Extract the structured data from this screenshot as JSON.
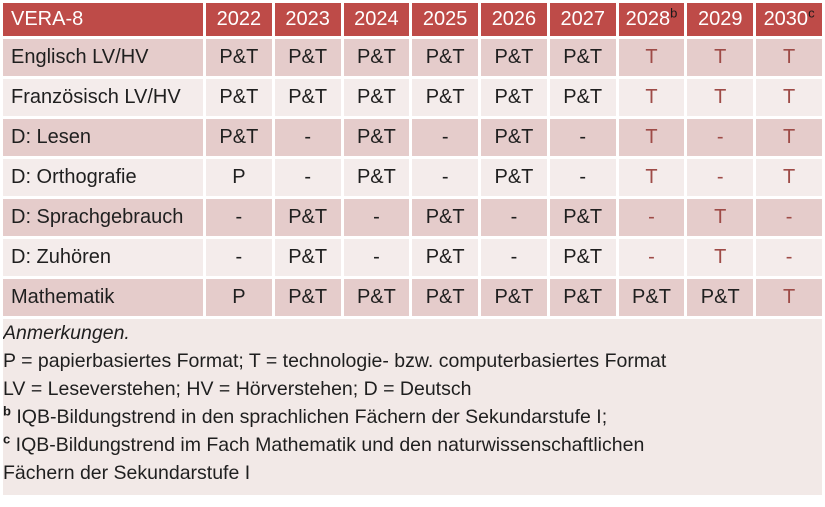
{
  "table": {
    "corner_label": "VERA-8",
    "year_headers": [
      {
        "text": "2022",
        "sup": ""
      },
      {
        "text": "2023",
        "sup": ""
      },
      {
        "text": "2024",
        "sup": ""
      },
      {
        "text": "2025",
        "sup": ""
      },
      {
        "text": "2026",
        "sup": ""
      },
      {
        "text": "2027",
        "sup": ""
      },
      {
        "text": "2028",
        "sup": "b"
      },
      {
        "text": "2029",
        "sup": ""
      },
      {
        "text": "2030",
        "sup": "c"
      }
    ],
    "rows": [
      {
        "label": "Englisch LV/HV",
        "values": [
          "P&T",
          "P&T",
          "P&T",
          "P&T",
          "P&T",
          "P&T",
          "T",
          "T",
          "T"
        ],
        "red": [
          false,
          false,
          false,
          false,
          false,
          false,
          true,
          true,
          true
        ]
      },
      {
        "label": "Französisch LV/HV",
        "values": [
          "P&T",
          "P&T",
          "P&T",
          "P&T",
          "P&T",
          "P&T",
          "T",
          "T",
          "T"
        ],
        "red": [
          false,
          false,
          false,
          false,
          false,
          false,
          true,
          true,
          true
        ]
      },
      {
        "label": "D: Lesen",
        "values": [
          "P&T",
          "-",
          "P&T",
          "-",
          "P&T",
          "-",
          "T",
          "-",
          "T"
        ],
        "red": [
          false,
          false,
          false,
          false,
          false,
          false,
          true,
          true,
          true
        ]
      },
      {
        "label": "D: Orthografie",
        "values": [
          "P",
          "-",
          "P&T",
          "-",
          "P&T",
          "-",
          "T",
          "-",
          "T"
        ],
        "red": [
          false,
          false,
          false,
          false,
          false,
          false,
          true,
          true,
          true
        ]
      },
      {
        "label": "D: Sprachgebrauch",
        "values": [
          "-",
          "P&T",
          "-",
          "P&T",
          "-",
          "P&T",
          "-",
          "T",
          "-"
        ],
        "red": [
          false,
          false,
          false,
          false,
          false,
          false,
          true,
          true,
          true
        ]
      },
      {
        "label": "D: Zuhören",
        "values": [
          "-",
          "P&T",
          "-",
          "P&T",
          "-",
          "P&T",
          "-",
          "T",
          "-"
        ],
        "red": [
          false,
          false,
          false,
          false,
          false,
          false,
          true,
          true,
          true
        ]
      },
      {
        "label": "Mathematik",
        "values": [
          "P",
          "P&T",
          "P&T",
          "P&T",
          "P&T",
          "P&T",
          "P&T",
          "P&T",
          "T"
        ],
        "red": [
          false,
          false,
          false,
          false,
          false,
          false,
          false,
          false,
          true
        ]
      }
    ]
  },
  "notes": {
    "title": "Anmerkungen.",
    "lines": [
      {
        "sup": "",
        "text": "P = papierbasiertes Format; T = technologie- bzw. computerbasiertes Format"
      },
      {
        "sup": "",
        "text": "LV = Leseverstehen; HV = Hörverstehen; D = Deutsch"
      },
      {
        "sup": "b",
        "text": "IQB-Bildungstrend in den sprachlichen Fächern der Sekundarstufe I;"
      },
      {
        "sup": "c",
        "text": "IQB-Bildungstrend im Fach Mathematik und den naturwissenschaftlichen"
      },
      {
        "sup": "",
        "text": "Fächern der Sekundarstufe I"
      }
    ]
  },
  "colors": {
    "header_bg": "#be4b48",
    "header_text": "#ffffff",
    "header_sup_text": "#1a1a1a",
    "band_dark": "#e5cccb",
    "band_light": "#f4eceb",
    "notes_bg": "#f2e9e7",
    "accent_red": "#9e4b47",
    "body_text": "#1f1f1f"
  }
}
